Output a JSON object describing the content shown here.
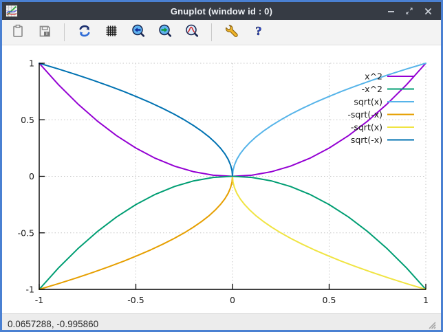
{
  "window": {
    "title": "Gnuplot (window id : 0)",
    "controls": {
      "minimize": "minimize",
      "restore": "restore",
      "close": "close"
    }
  },
  "toolbar": {
    "buttons": [
      {
        "name": "copy-to-clipboard",
        "icon": "clipboard-icon",
        "group": 1
      },
      {
        "name": "export-to-image",
        "icon": "save-image-icon",
        "group": 1
      },
      {
        "name": "replot",
        "icon": "replot-refresh-icon",
        "group": 2
      },
      {
        "name": "toggle-grid",
        "icon": "grid-icon",
        "group": 2
      },
      {
        "name": "previous-zoom",
        "icon": "zoom-previous-icon",
        "group": 2
      },
      {
        "name": "next-zoom",
        "icon": "zoom-next-icon",
        "group": 2
      },
      {
        "name": "autoscale",
        "icon": "zoom-autoscale-icon",
        "group": 2
      },
      {
        "name": "options",
        "icon": "wrench-icon",
        "group": 3
      },
      {
        "name": "help",
        "icon": "help-icon",
        "group": 3
      }
    ]
  },
  "statusbar": {
    "coordinates": "0.0657288, -0.995860"
  },
  "chart_data": {
    "type": "line",
    "title": "",
    "xlabel": "",
    "ylabel": "",
    "xlim": [
      -1,
      1
    ],
    "ylim": [
      -1,
      1
    ],
    "xticks": [
      -1,
      -0.5,
      0,
      0.5,
      1
    ],
    "xtick_labels": [
      "-1",
      "-0.5",
      "0",
      "0.5",
      "1"
    ],
    "yticks": [
      1,
      0.5,
      0,
      -0.5,
      -1
    ],
    "ytick_labels": [
      "1",
      "0.5",
      "0",
      "-0.5",
      "-1"
    ],
    "grid": true,
    "legend_position": "top-right",
    "series": [
      {
        "name": "x^2",
        "color": "#9400d3",
        "points": [
          [
            -1,
            1
          ],
          [
            -0.9,
            0.81
          ],
          [
            -0.8,
            0.64
          ],
          [
            -0.7,
            0.49
          ],
          [
            -0.6,
            0.36
          ],
          [
            -0.5,
            0.25
          ],
          [
            -0.4,
            0.16
          ],
          [
            -0.3,
            0.09
          ],
          [
            -0.2,
            0.04
          ],
          [
            -0.1,
            0.01
          ],
          [
            0,
            0
          ],
          [
            0.1,
            0.01
          ],
          [
            0.2,
            0.04
          ],
          [
            0.3,
            0.09
          ],
          [
            0.4,
            0.16
          ],
          [
            0.5,
            0.25
          ],
          [
            0.6,
            0.36
          ],
          [
            0.7,
            0.49
          ],
          [
            0.8,
            0.64
          ],
          [
            0.9,
            0.81
          ],
          [
            1,
            1
          ]
        ]
      },
      {
        "name": "-x^2",
        "color": "#009e73",
        "points": [
          [
            -1,
            -1
          ],
          [
            -0.9,
            -0.81
          ],
          [
            -0.8,
            -0.64
          ],
          [
            -0.7,
            -0.49
          ],
          [
            -0.6,
            -0.36
          ],
          [
            -0.5,
            -0.25
          ],
          [
            -0.4,
            -0.16
          ],
          [
            -0.3,
            -0.09
          ],
          [
            -0.2,
            -0.04
          ],
          [
            -0.1,
            -0.01
          ],
          [
            0,
            0
          ],
          [
            0.1,
            -0.01
          ],
          [
            0.2,
            -0.04
          ],
          [
            0.3,
            -0.09
          ],
          [
            0.4,
            -0.16
          ],
          [
            0.5,
            -0.25
          ],
          [
            0.6,
            -0.36
          ],
          [
            0.7,
            -0.49
          ],
          [
            0.8,
            -0.64
          ],
          [
            0.9,
            -0.81
          ],
          [
            1,
            -1
          ]
        ]
      },
      {
        "name": "sqrt(x)",
        "color": "#56b4e9",
        "points": [
          [
            0,
            0
          ],
          [
            0.0025,
            0.05
          ],
          [
            0.01,
            0.1
          ],
          [
            0.0225,
            0.15
          ],
          [
            0.04,
            0.2
          ],
          [
            0.0625,
            0.25
          ],
          [
            0.09,
            0.3
          ],
          [
            0.1225,
            0.35
          ],
          [
            0.16,
            0.4
          ],
          [
            0.2025,
            0.45
          ],
          [
            0.25,
            0.5
          ],
          [
            0.3025,
            0.55
          ],
          [
            0.36,
            0.6
          ],
          [
            0.4225,
            0.65
          ],
          [
            0.49,
            0.7
          ],
          [
            0.5625,
            0.75
          ],
          [
            0.64,
            0.8
          ],
          [
            0.7225,
            0.85
          ],
          [
            0.81,
            0.9
          ],
          [
            0.9025,
            0.95
          ],
          [
            1,
            1
          ]
        ]
      },
      {
        "name": "-sqrt(-x)",
        "color": "#e69f00",
        "points": [
          [
            -1,
            -1
          ],
          [
            -0.9025,
            -0.95
          ],
          [
            -0.81,
            -0.9
          ],
          [
            -0.7225,
            -0.85
          ],
          [
            -0.64,
            -0.8
          ],
          [
            -0.5625,
            -0.75
          ],
          [
            -0.49,
            -0.7
          ],
          [
            -0.4225,
            -0.65
          ],
          [
            -0.36,
            -0.6
          ],
          [
            -0.3025,
            -0.55
          ],
          [
            -0.25,
            -0.5
          ],
          [
            -0.2025,
            -0.45
          ],
          [
            -0.16,
            -0.4
          ],
          [
            -0.1225,
            -0.35
          ],
          [
            -0.09,
            -0.3
          ],
          [
            -0.0625,
            -0.25
          ],
          [
            -0.04,
            -0.2
          ],
          [
            -0.0225,
            -0.15
          ],
          [
            -0.01,
            -0.1
          ],
          [
            -0.0025,
            -0.05
          ],
          [
            0,
            0
          ]
        ]
      },
      {
        "name": "-sqrt(x)",
        "color": "#f0e442",
        "points": [
          [
            0,
            0
          ],
          [
            0.0025,
            -0.05
          ],
          [
            0.01,
            -0.1
          ],
          [
            0.0225,
            -0.15
          ],
          [
            0.04,
            -0.2
          ],
          [
            0.0625,
            -0.25
          ],
          [
            0.09,
            -0.3
          ],
          [
            0.1225,
            -0.35
          ],
          [
            0.16,
            -0.4
          ],
          [
            0.2025,
            -0.45
          ],
          [
            0.25,
            -0.5
          ],
          [
            0.3025,
            -0.55
          ],
          [
            0.36,
            -0.6
          ],
          [
            0.4225,
            -0.65
          ],
          [
            0.49,
            -0.7
          ],
          [
            0.5625,
            -0.75
          ],
          [
            0.64,
            -0.8
          ],
          [
            0.7225,
            -0.85
          ],
          [
            0.81,
            -0.9
          ],
          [
            0.9025,
            -0.95
          ],
          [
            1,
            -1
          ]
        ]
      },
      {
        "name": "sqrt(-x)",
        "color": "#0072b2",
        "points": [
          [
            -1,
            1
          ],
          [
            -0.9025,
            0.95
          ],
          [
            -0.81,
            0.9
          ],
          [
            -0.7225,
            0.85
          ],
          [
            -0.64,
            0.8
          ],
          [
            -0.5625,
            0.75
          ],
          [
            -0.49,
            0.7
          ],
          [
            -0.4225,
            0.65
          ],
          [
            -0.36,
            0.6
          ],
          [
            -0.3025,
            0.55
          ],
          [
            -0.25,
            0.5
          ],
          [
            -0.2025,
            0.45
          ],
          [
            -0.16,
            0.4
          ],
          [
            -0.1225,
            0.35
          ],
          [
            -0.09,
            0.3
          ],
          [
            -0.0625,
            0.25
          ],
          [
            -0.04,
            0.2
          ],
          [
            -0.0225,
            0.15
          ],
          [
            -0.01,
            0.1
          ],
          [
            -0.0025,
            0.05
          ],
          [
            0,
            0
          ]
        ]
      }
    ]
  }
}
